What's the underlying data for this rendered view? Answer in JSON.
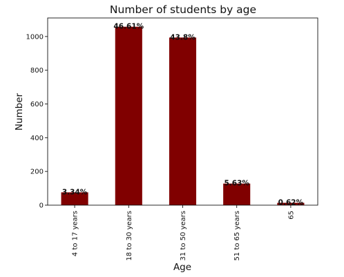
{
  "chart_data": {
    "type": "bar",
    "title": "Number of students by age",
    "xlabel": "Age",
    "ylabel": "Number",
    "categories": [
      "4 to 17 years",
      "18 to 30 years",
      "31 to 50 years",
      "51 to 65 years",
      "65"
    ],
    "values": [
      76,
      1058,
      994,
      128,
      14
    ],
    "data_labels": [
      "3.34%",
      "46.61%",
      "43.8%",
      "5.63%",
      "0.62%"
    ],
    "ylim": [
      0,
      1110
    ],
    "yticks": [
      0,
      200,
      400,
      600,
      800,
      1000
    ],
    "bar_color": "#800000",
    "grid": false,
    "legend": "none"
  }
}
